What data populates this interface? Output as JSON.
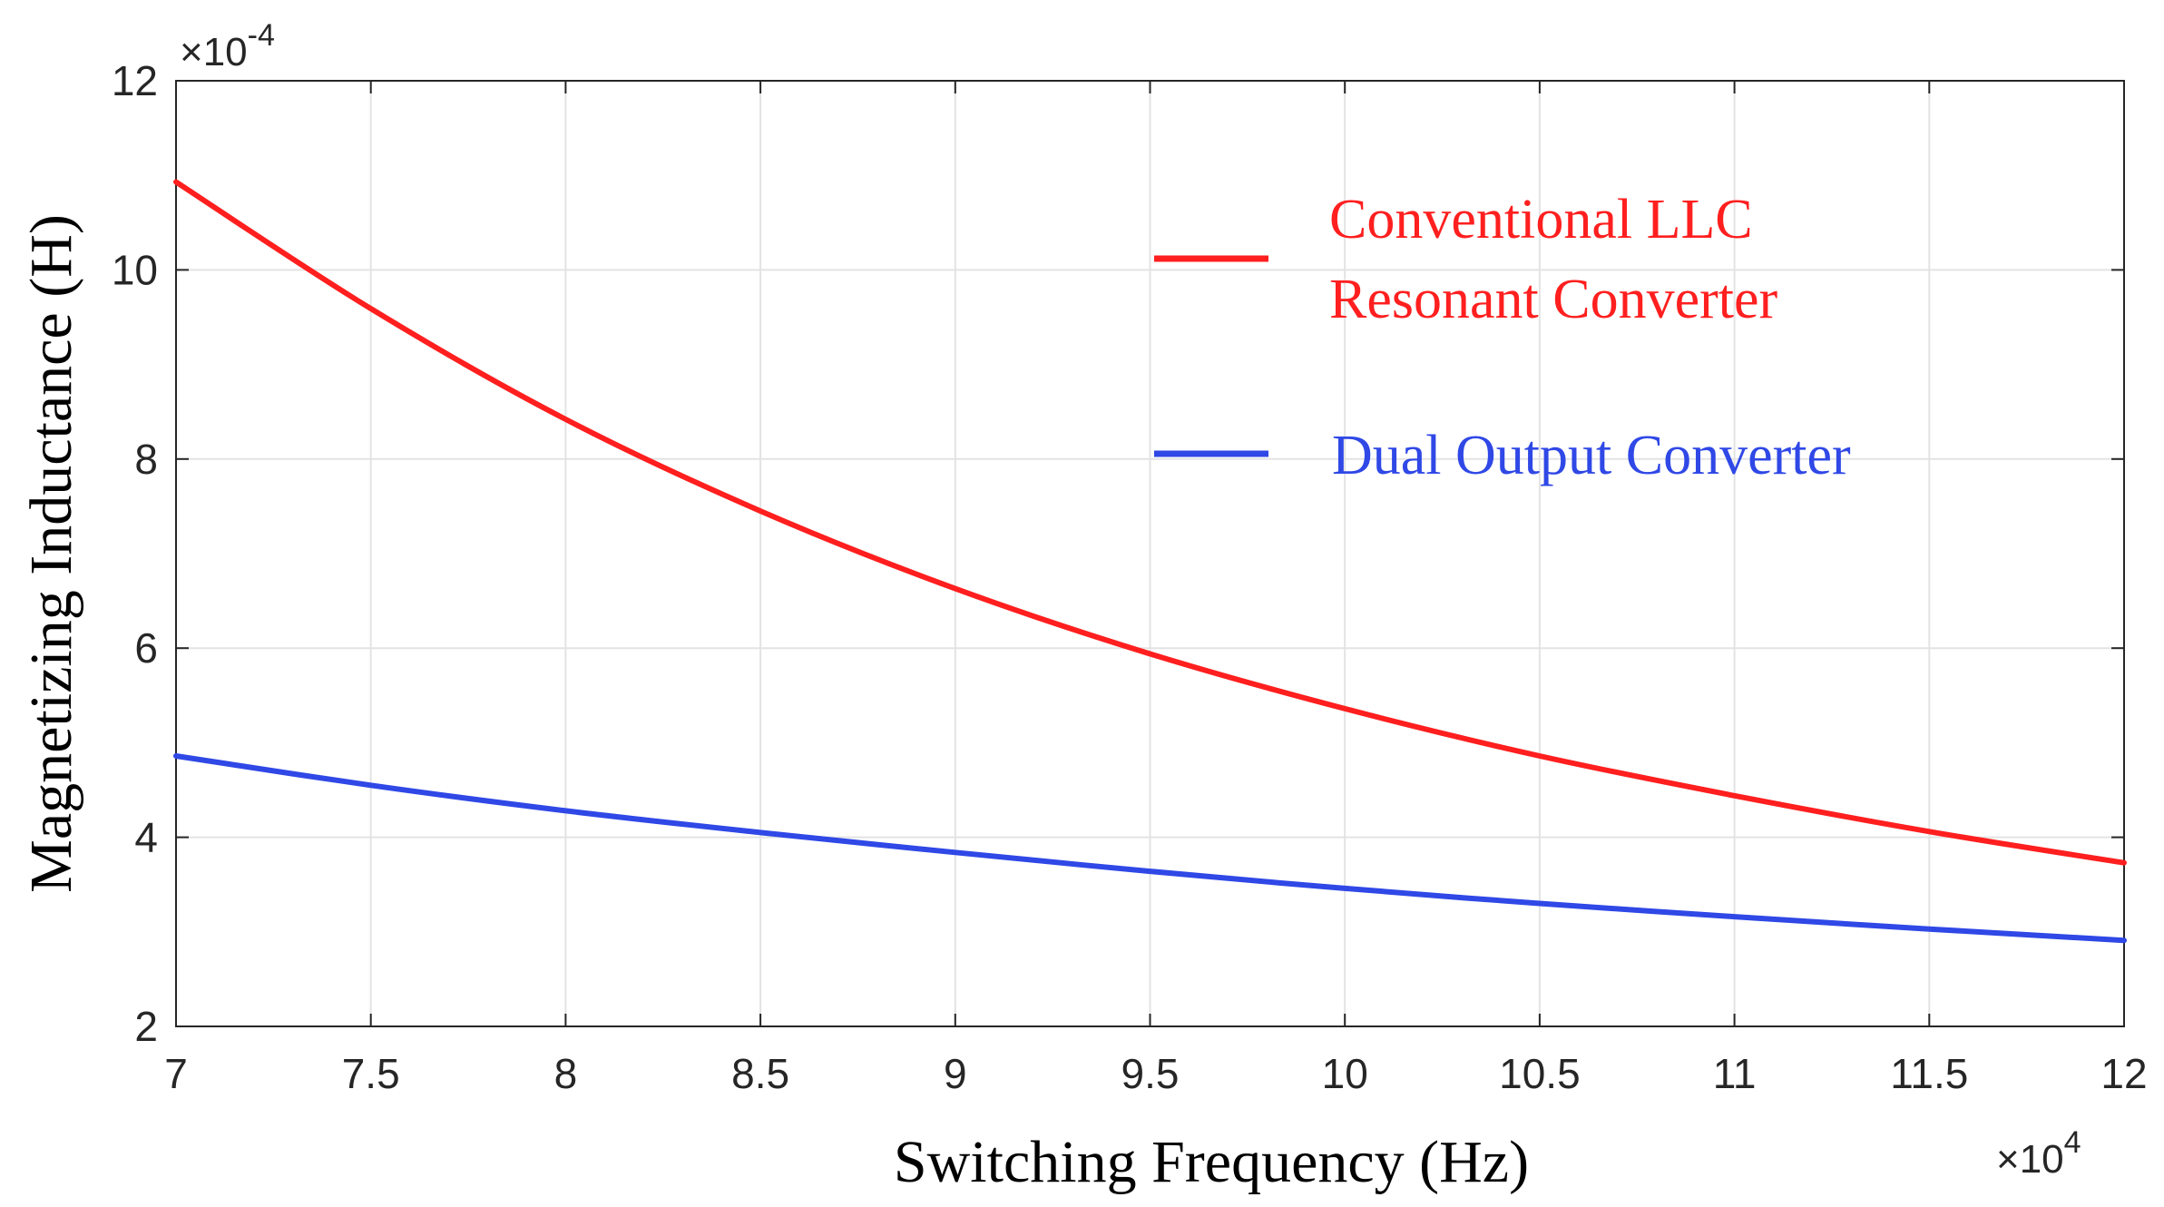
{
  "chart_data": {
    "type": "line",
    "title": "",
    "xlabel": "Switching Frequency (Hz)",
    "ylabel": "Magnetizing Inductance (H)",
    "xlim": [
      70000,
      120000
    ],
    "ylim": [
      0.0002,
      0.0012
    ],
    "x_ticks": [
      70000,
      75000,
      80000,
      85000,
      90000,
      95000,
      100000,
      105000,
      110000,
      115000,
      120000
    ],
    "x_tick_labels": [
      "7",
      "7.5",
      "8",
      "8.5",
      "9",
      "9.5",
      "10",
      "10.5",
      "11",
      "11.5",
      "12"
    ],
    "y_ticks": [
      0.0002,
      0.0004,
      0.0006,
      0.0008,
      0.001,
      0.0012
    ],
    "y_tick_labels": [
      "2",
      "4",
      "6",
      "8",
      "10",
      "12"
    ],
    "x_multiplier": {
      "base": "×10",
      "exp": "4"
    },
    "y_multiplier": {
      "base": "×10",
      "exp": "-4"
    },
    "grid": true,
    "legend_position": "top-right",
    "series": [
      {
        "name": "Conventional LLC Resonant Converter",
        "legend_lines": [
          "Conventional LLC",
          "Resonant Converter"
        ],
        "color": "#ff1f1f",
        "x": [
          70000,
          75000,
          80000,
          85000,
          90000,
          95000,
          100000,
          105000,
          110000,
          115000,
          120000
        ],
        "y": [
          0.001093,
          0.000959,
          0.000842,
          0.000745,
          0.000663,
          0.000594,
          0.000536,
          0.000486,
          0.000444,
          0.000406,
          0.000373
        ]
      },
      {
        "name": "Dual Output Converter",
        "legend_lines": [
          "Dual Output Converter"
        ],
        "color": "#2f48e6",
        "x": [
          70000,
          75000,
          80000,
          85000,
          90000,
          95000,
          100000,
          105000,
          110000,
          115000,
          120000
        ],
        "y": [
          0.000486,
          0.000455,
          0.000428,
          0.000405,
          0.000384,
          0.000364,
          0.000346,
          0.00033,
          0.000316,
          0.000303,
          0.000291
        ]
      }
    ]
  }
}
